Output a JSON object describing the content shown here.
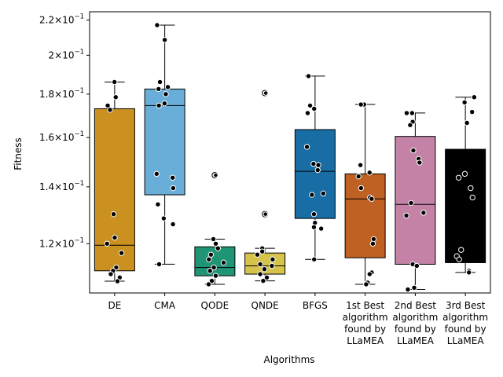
{
  "chart_data": {
    "type": "box",
    "xlabel": "Algorithms",
    "ylabel": "Fitness",
    "yscale": "log",
    "ylim": [
      0.105,
      0.225
    ],
    "grid": false,
    "y_ticks": [
      {
        "value": 0.12,
        "mantissa": "1.2",
        "base": "10",
        "exp": "−1"
      },
      {
        "value": 0.14,
        "mantissa": "1.4",
        "base": "10",
        "exp": "−1"
      },
      {
        "value": 0.16,
        "mantissa": "1.6",
        "base": "10",
        "exp": "−1"
      },
      {
        "value": 0.18,
        "mantissa": "1.8",
        "base": "10",
        "exp": "−1"
      },
      {
        "value": 0.2,
        "mantissa": "2",
        "base": "10",
        "exp": "−1"
      },
      {
        "value": 0.22,
        "mantissa": "2.2",
        "base": "10",
        "exp": "−1"
      }
    ],
    "categories": [
      {
        "label_lines": [
          "DE"
        ],
        "color": "#CA9121",
        "whisker_low": 0.1084,
        "q1": 0.1115,
        "median": 0.1195,
        "q3": 0.173,
        "whisker_high": 0.186,
        "points": [
          0.186,
          0.1785,
          0.1745,
          0.1725,
          0.13,
          0.122,
          0.12,
          0.117,
          0.1125,
          0.1115,
          0.1105,
          0.1095,
          0.1084
        ],
        "fliers": []
      },
      {
        "label_lines": [
          "CMA"
        ],
        "color": "#68AED9",
        "whisker_low": 0.1135,
        "q1": 0.137,
        "median": 0.1745,
        "q3": 0.1825,
        "whisker_high": 0.217,
        "points": [
          0.217,
          0.2085,
          0.186,
          0.1835,
          0.1825,
          0.18,
          0.1755,
          0.1745,
          0.145,
          0.1435,
          0.1395,
          0.1335,
          0.1285,
          0.1265,
          0.1135
        ],
        "fliers": []
      },
      {
        "label_lines": [
          "QODE"
        ],
        "color": "#1F9575",
        "whisker_low": 0.1075,
        "q1": 0.11,
        "median": 0.1125,
        "q3": 0.119,
        "whisker_high": 0.1215,
        "points": [
          0.1215,
          0.12,
          0.1185,
          0.1165,
          0.115,
          0.114,
          0.1125,
          0.1115,
          0.11,
          0.1085,
          0.1075
        ],
        "fliers": [
          0.1445
        ]
      },
      {
        "label_lines": [
          "QNDE"
        ],
        "color": "#D6C349",
        "whisker_low": 0.1085,
        "q1": 0.1105,
        "median": 0.113,
        "q3": 0.117,
        "whisker_high": 0.1185,
        "points": [
          0.1185,
          0.1175,
          0.1165,
          0.115,
          0.1135,
          0.113,
          0.112,
          0.1105,
          0.1095,
          0.1085
        ],
        "fliers": [
          0.1805,
          0.13
        ]
      },
      {
        "label_lines": [
          "BFGS"
        ],
        "color": "#186EA4",
        "whisker_low": 0.115,
        "q1": 0.1285,
        "median": 0.146,
        "q3": 0.1635,
        "whisker_high": 0.189,
        "points": [
          0.189,
          0.1745,
          0.173,
          0.171,
          0.156,
          0.149,
          0.1485,
          0.1465,
          0.1375,
          0.137,
          0.13,
          0.127,
          0.1255,
          0.125,
          0.115
        ],
        "fliers": []
      },
      {
        "label_lines": [
          "1st Best",
          "algorithm",
          "found by",
          "LLaMEA"
        ],
        "color": "#BE6122",
        "whisker_low": 0.1075,
        "q1": 0.1155,
        "median": 0.1355,
        "q3": 0.145,
        "whisker_high": 0.175,
        "points": [
          0.175,
          0.175,
          0.1485,
          0.1455,
          0.144,
          0.1395,
          0.136,
          0.1355,
          0.1215,
          0.12,
          0.111,
          0.1105,
          0.108,
          0.1075
        ],
        "fliers": []
      },
      {
        "label_lines": [
          "2nd Best",
          "algorithm",
          "found by",
          "LLaMEA"
        ],
        "color": "#C382A6",
        "whisker_low": 0.106,
        "q1": 0.1135,
        "median": 0.1335,
        "q3": 0.1605,
        "whisker_high": 0.171,
        "points": [
          0.171,
          0.171,
          0.167,
          0.1655,
          0.1545,
          0.151,
          0.1495,
          0.134,
          0.1305,
          0.1295,
          0.1135,
          0.113,
          0.1065,
          0.106
        ],
        "fliers": []
      },
      {
        "label_lines": [
          "3rd Best",
          "algorithm",
          "found by",
          "LLaMEA"
        ],
        "color": "#000000",
        "whisker_low": 0.111,
        "q1": 0.114,
        "median": 0.114,
        "q3": 0.155,
        "whisker_high": 0.1785,
        "points": [
          0.1785,
          0.176,
          0.1715,
          0.1665,
          0.145,
          0.1435,
          0.1395,
          0.136,
          0.118,
          0.116,
          0.115,
          0.1115,
          0.111
        ],
        "fliers": []
      }
    ]
  }
}
